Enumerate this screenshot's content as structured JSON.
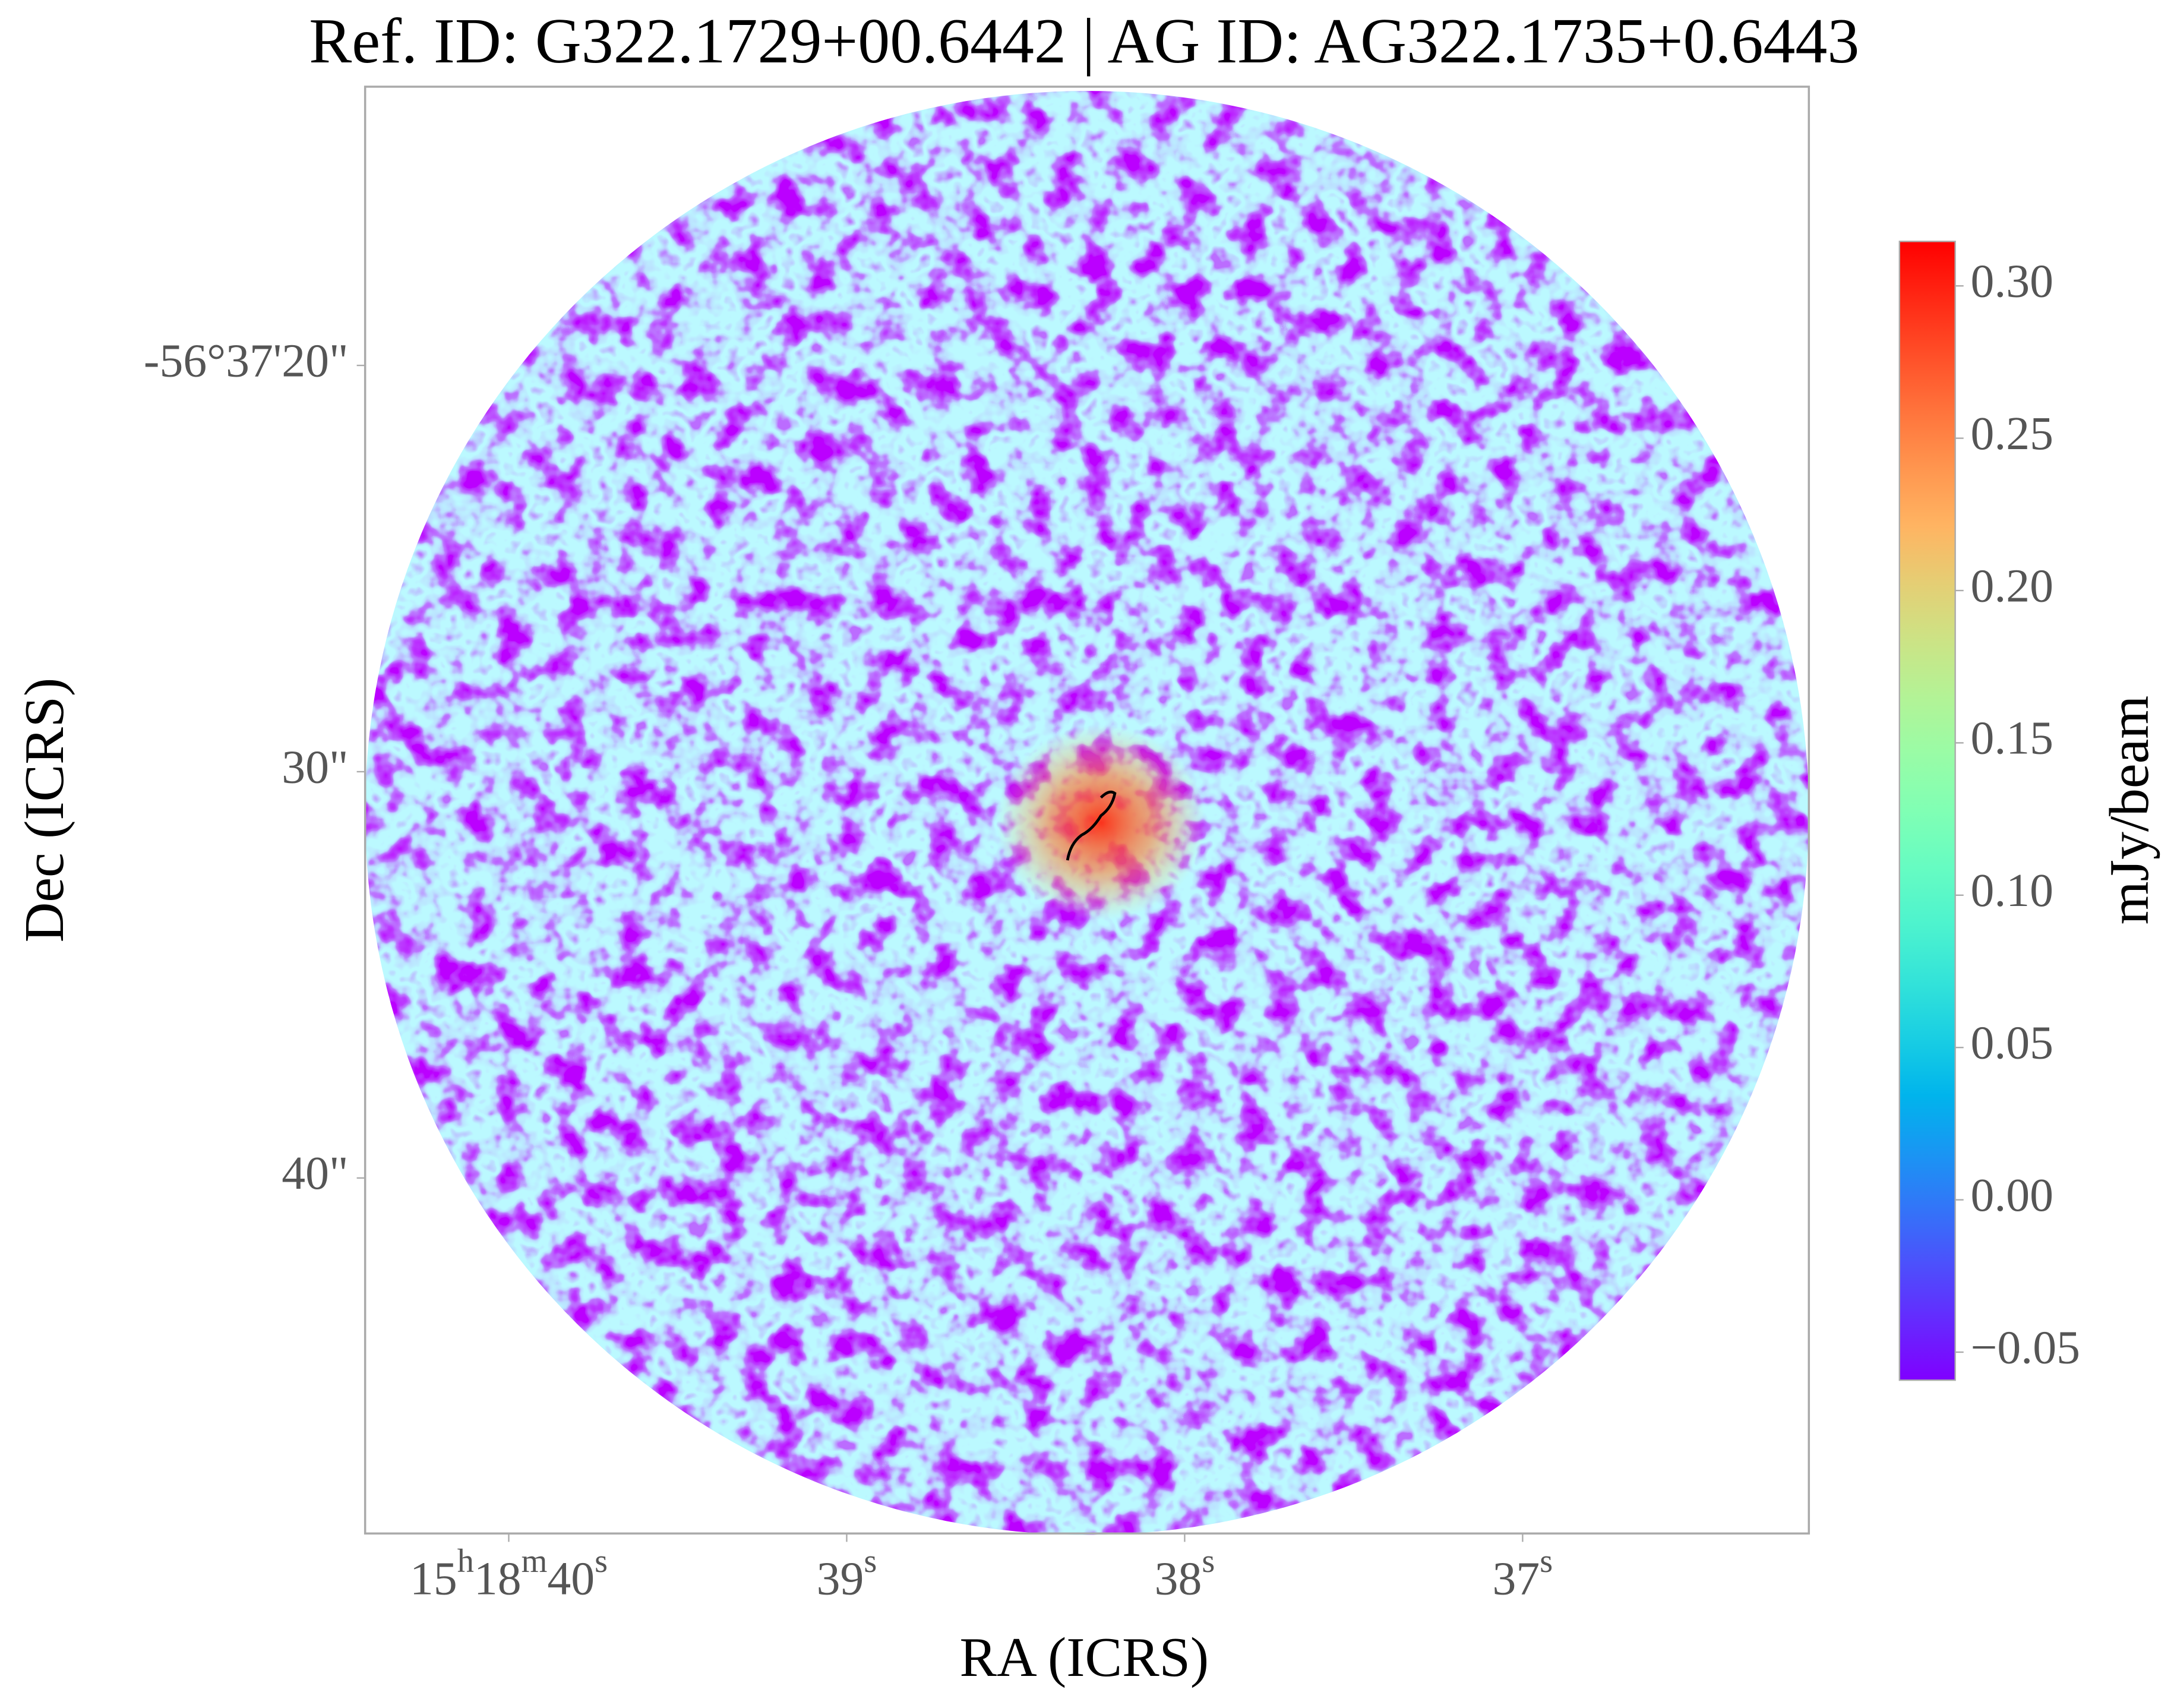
{
  "chart_data": {
    "type": "image",
    "title": "Ref. ID: G322.1729+00.6442 | AG ID: AG322.1735+0.6443",
    "x_label": "RA (ICRS)",
    "y_label": "Dec (ICRS)",
    "xlim": [
      40.425,
      36.153
    ],
    "xticks": [
      {
        "value": 40,
        "label": "15h18m40s"
      },
      {
        "value": 39,
        "label": "39s"
      },
      {
        "value": 38,
        "label": "38s"
      },
      {
        "value": 37,
        "label": "37s"
      }
    ],
    "ylim": [
      48.75,
      13.14
    ],
    "yticks": [
      {
        "value": 20,
        "label": "-56°37'20\""
      },
      {
        "value": 30,
        "label": "30\""
      },
      {
        "value": 40,
        "label": "40\""
      }
    ],
    "colorbar": {
      "label": "mJy/beam",
      "colormap": "rainbow",
      "lim": [
        -0.0592,
        0.3146
      ],
      "ticks": [
        {
          "value": 0.3,
          "label": "0.30"
        },
        {
          "value": 0.25,
          "label": "0.25"
        },
        {
          "value": 0.2,
          "label": "0.20"
        },
        {
          "value": 0.15,
          "label": "0.15"
        },
        {
          "value": 0.1,
          "label": "0.10"
        },
        {
          "value": 0.05,
          "label": "0.05"
        },
        {
          "value": 0,
          "label": "0.00"
        },
        {
          "value": -0.05,
          "label": "−0.05"
        }
      ]
    }
  }
}
